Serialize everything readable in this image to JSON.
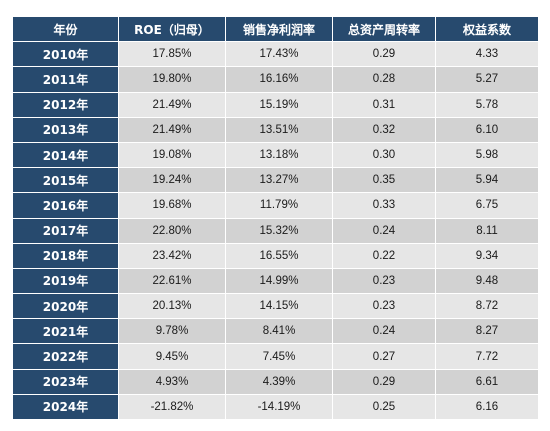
{
  "table": {
    "headers": [
      "年份",
      "ROE（归母）",
      "销售净利润率",
      "总资产周转率",
      "权益系数"
    ],
    "rows": [
      {
        "year": "2010年",
        "roe": "17.85%",
        "net_margin": "17.43%",
        "asset_turnover": "0.29",
        "equity_multiplier": "4.33"
      },
      {
        "year": "2011年",
        "roe": "19.80%",
        "net_margin": "16.16%",
        "asset_turnover": "0.28",
        "equity_multiplier": "5.27"
      },
      {
        "year": "2012年",
        "roe": "21.49%",
        "net_margin": "15.19%",
        "asset_turnover": "0.31",
        "equity_multiplier": "5.78"
      },
      {
        "year": "2013年",
        "roe": "21.49%",
        "net_margin": "13.51%",
        "asset_turnover": "0.32",
        "equity_multiplier": "6.10"
      },
      {
        "year": "2014年",
        "roe": "19.08%",
        "net_margin": "13.18%",
        "asset_turnover": "0.30",
        "equity_multiplier": "5.98"
      },
      {
        "year": "2015年",
        "roe": "19.24%",
        "net_margin": "13.27%",
        "asset_turnover": "0.35",
        "equity_multiplier": "5.94"
      },
      {
        "year": "2016年",
        "roe": "19.68%",
        "net_margin": "11.79%",
        "asset_turnover": "0.33",
        "equity_multiplier": "6.75"
      },
      {
        "year": "2017年",
        "roe": "22.80%",
        "net_margin": "15.32%",
        "asset_turnover": "0.24",
        "equity_multiplier": "8.11"
      },
      {
        "year": "2018年",
        "roe": "23.42%",
        "net_margin": "16.55%",
        "asset_turnover": "0.22",
        "equity_multiplier": "9.34"
      },
      {
        "year": "2019年",
        "roe": "22.61%",
        "net_margin": "14.99%",
        "asset_turnover": "0.23",
        "equity_multiplier": "9.48"
      },
      {
        "year": "2020年",
        "roe": "20.13%",
        "net_margin": "14.15%",
        "asset_turnover": "0.23",
        "equity_multiplier": "8.72"
      },
      {
        "year": "2021年",
        "roe": "9.78%",
        "net_margin": "8.41%",
        "asset_turnover": "0.24",
        "equity_multiplier": "8.27"
      },
      {
        "year": "2022年",
        "roe": "9.45%",
        "net_margin": "7.45%",
        "asset_turnover": "0.27",
        "equity_multiplier": "7.72"
      },
      {
        "year": "2023年",
        "roe": "4.93%",
        "net_margin": "4.39%",
        "asset_turnover": "0.29",
        "equity_multiplier": "6.61"
      },
      {
        "year": "2024年",
        "roe": "-21.82%",
        "net_margin": "-14.19%",
        "asset_turnover": "0.25",
        "equity_multiplier": "6.16"
      }
    ]
  },
  "colors": {
    "header_bg": "#274a6e",
    "header_text": "#ffffff",
    "row_light": "#e6e6e6",
    "row_dark": "#d2d2d2"
  }
}
